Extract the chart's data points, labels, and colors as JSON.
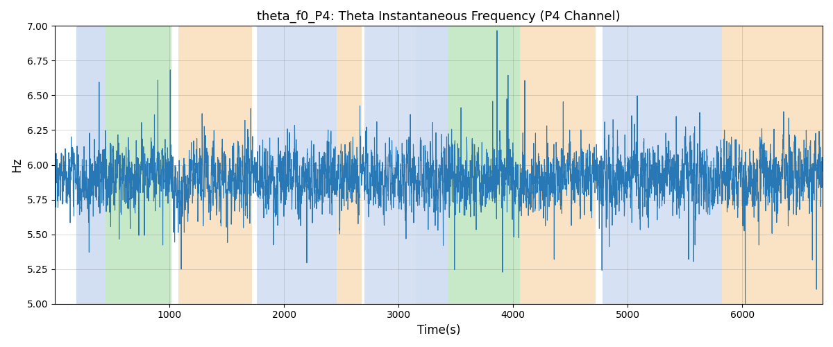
{
  "title": "theta_f0_P4: Theta Instantaneous Frequency (P4 Channel)",
  "xlabel": "Time(s)",
  "ylabel": "Hz",
  "ylim": [
    5.0,
    7.0
  ],
  "xlim": [
    0,
    6700
  ],
  "yticks": [
    5.0,
    5.25,
    5.5,
    5.75,
    6.0,
    6.25,
    6.5,
    6.75,
    7.0
  ],
  "xticks": [
    1000,
    2000,
    3000,
    4000,
    5000,
    6000
  ],
  "line_color": "#2878b5",
  "line_width": 0.8,
  "figsize": [
    12,
    5
  ],
  "dpi": 100,
  "bands": [
    {
      "xmin": 190,
      "xmax": 440,
      "color": "#aec6e8",
      "alpha": 0.55
    },
    {
      "xmin": 440,
      "xmax": 1020,
      "color": "#90d490",
      "alpha": 0.5
    },
    {
      "xmin": 1080,
      "xmax": 1720,
      "color": "#f5c98a",
      "alpha": 0.5
    },
    {
      "xmin": 1760,
      "xmax": 2460,
      "color": "#aec6e8",
      "alpha": 0.5
    },
    {
      "xmin": 2460,
      "xmax": 2680,
      "color": "#f5c98a",
      "alpha": 0.5
    },
    {
      "xmin": 2700,
      "xmax": 3150,
      "color": "#aec6e8",
      "alpha": 0.5
    },
    {
      "xmin": 3150,
      "xmax": 3430,
      "color": "#aec6e8",
      "alpha": 0.55
    },
    {
      "xmin": 3430,
      "xmax": 4060,
      "color": "#90d490",
      "alpha": 0.5
    },
    {
      "xmin": 4060,
      "xmax": 4720,
      "color": "#f5c98a",
      "alpha": 0.5
    },
    {
      "xmin": 4780,
      "xmax": 5820,
      "color": "#aec6e8",
      "alpha": 0.5
    },
    {
      "xmin": 5820,
      "xmax": 6080,
      "color": "#f5c98a",
      "alpha": 0.5
    },
    {
      "xmin": 6080,
      "xmax": 6700,
      "color": "#f5c98a",
      "alpha": 0.5
    }
  ],
  "signal_base": 5.9,
  "signal_ar": 0.7,
  "signal_noise": 0.09,
  "spike_noise": 0.28,
  "n_spikes": 200,
  "seed": 2024
}
